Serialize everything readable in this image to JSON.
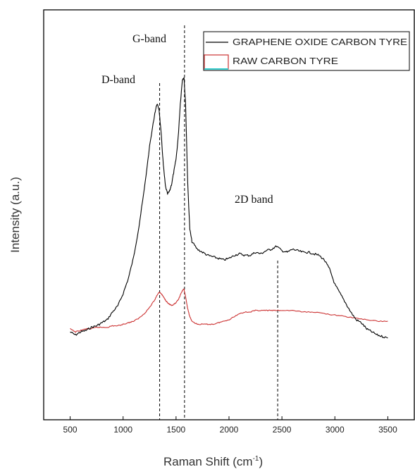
{
  "chart_data": {
    "type": "line",
    "title": "",
    "xlabel": "Raman Shift (cm",
    "xlabel_sup": "-1",
    "xlabel_close": ")",
    "ylabel": "Intensity (a.u.)",
    "xlim": [
      250,
      3750
    ],
    "ylim": [
      0,
      100
    ],
    "xticks": [
      500,
      1000,
      1500,
      2000,
      2500,
      3000,
      3500
    ],
    "legend_position": "top-right",
    "grid": false,
    "series": [
      {
        "name": "GRAPHENE OXIDE CARBON TYRE",
        "color": "#000000",
        "x": [
          500,
          550,
          600,
          650,
          700,
          750,
          800,
          850,
          900,
          950,
          1000,
          1050,
          1100,
          1150,
          1200,
          1250,
          1300,
          1320,
          1340,
          1360,
          1380,
          1400,
          1420,
          1440,
          1460,
          1480,
          1500,
          1520,
          1540,
          1560,
          1575,
          1590,
          1610,
          1630,
          1650,
          1700,
          1750,
          1800,
          1850,
          1900,
          1950,
          2000,
          2050,
          2100,
          2150,
          2200,
          2250,
          2300,
          2350,
          2400,
          2450,
          2500,
          2550,
          2600,
          2650,
          2700,
          2750,
          2800,
          2850,
          2900,
          2950,
          3000,
          3050,
          3100,
          3150,
          3200,
          3250,
          3300,
          3350,
          3400,
          3450,
          3500
        ],
        "y": [
          13.5,
          12.5,
          13.5,
          14,
          15,
          15.5,
          16.5,
          17.5,
          20,
          22,
          26,
          31,
          38,
          48,
          60,
          74,
          85,
          88,
          86,
          78,
          68,
          61,
          58.5,
          59.5,
          62,
          66,
          70,
          77,
          88,
          96,
          96.5,
          88,
          62,
          47,
          43,
          40.5,
          39.5,
          38.5,
          38,
          37.5,
          37,
          37.5,
          38.5,
          39,
          38.5,
          38.5,
          39.5,
          39,
          40,
          40.5,
          41.5,
          40,
          39.5,
          40.5,
          40,
          39.5,
          39.5,
          39,
          38.5,
          37,
          34,
          29,
          26,
          23,
          20,
          17.5,
          16.5,
          14.5,
          13.5,
          12.5,
          12,
          11.5
        ]
      },
      {
        "name": "RAW CARBON TYRE",
        "color": "#cc3333",
        "x": [
          500,
          550,
          600,
          650,
          700,
          750,
          800,
          850,
          900,
          950,
          1000,
          1050,
          1100,
          1150,
          1200,
          1250,
          1300,
          1320,
          1340,
          1360,
          1380,
          1400,
          1420,
          1440,
          1460,
          1480,
          1500,
          1520,
          1540,
          1560,
          1575,
          1590,
          1610,
          1630,
          1650,
          1700,
          1750,
          1800,
          1850,
          1900,
          1950,
          2000,
          2050,
          2100,
          2150,
          2200,
          2250,
          2300,
          2350,
          2400,
          2450,
          2500,
          2600,
          2700,
          2800,
          2900,
          3000,
          3100,
          3200,
          3300,
          3400,
          3500
        ],
        "y": [
          14.5,
          13.5,
          14,
          14.5,
          14.5,
          15,
          15,
          15,
          15.5,
          15.5,
          16,
          16.5,
          17,
          18,
          19.5,
          21.5,
          24,
          25.5,
          26.5,
          26,
          25,
          24,
          23,
          22.5,
          22,
          22.5,
          23,
          24,
          25.5,
          27,
          27.5,
          25,
          21,
          18.5,
          17,
          16,
          16,
          16,
          16,
          16.5,
          17,
          17.5,
          18.5,
          19.5,
          20,
          20,
          20.5,
          20.5,
          20.5,
          20.5,
          20.5,
          20.5,
          20.5,
          20,
          20,
          19.5,
          19,
          18.5,
          18,
          17.5,
          17,
          17
        ]
      }
    ],
    "annotations": [
      {
        "label": "D-band",
        "x": 1345
      },
      {
        "label": "G-band",
        "x": 1580
      },
      {
        "label": "2D band",
        "x": 2460
      }
    ]
  }
}
